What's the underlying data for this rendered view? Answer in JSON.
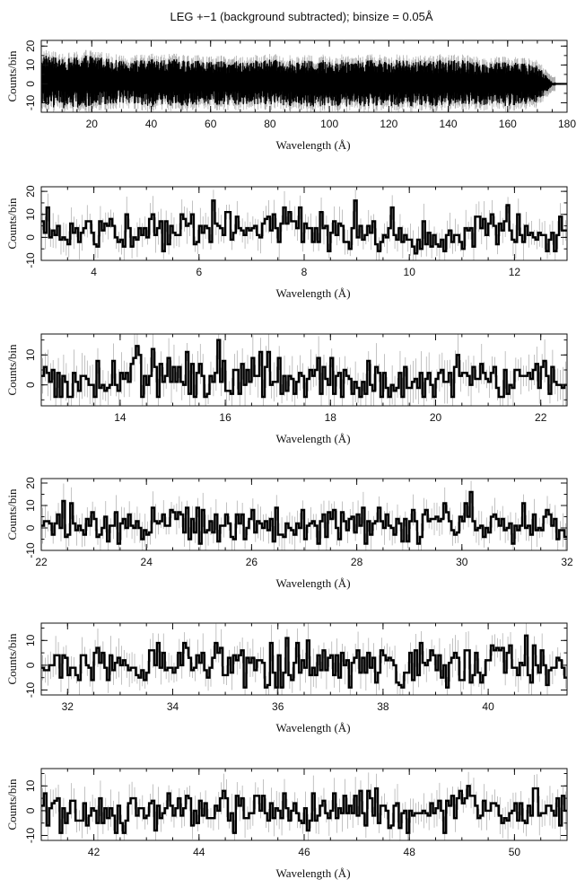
{
  "figure_title": "LEG +−1 (background subtracted); binsize = 0.05Å",
  "chart_data": [
    {
      "type": "line",
      "style": "step histogram with error bars",
      "title": "LEG +−1 (background subtracted); binsize = 0.05Å",
      "xlabel": "Wavelength (Å)",
      "ylabel": "Counts/bin",
      "xlim": [
        3,
        180
      ],
      "ylim": [
        -15,
        23
      ],
      "xticks": [
        20,
        40,
        60,
        80,
        100,
        120,
        140,
        160,
        180
      ],
      "yticks": [
        -10,
        0,
        10,
        20
      ],
      "series": [
        {
          "x": [
            3,
            10,
            20,
            30,
            40,
            50,
            60,
            70,
            80,
            90,
            100,
            110,
            120,
            130,
            140,
            150,
            160,
            170,
            175,
            180
          ],
          "y": [
            4,
            3,
            2,
            2,
            1,
            1,
            2,
            1,
            2,
            1,
            0,
            1,
            1,
            1,
            1,
            0,
            1,
            0,
            0,
            0
          ],
          "y_range": [
            [
              -12,
              16
            ],
            [
              -13,
              13
            ],
            [
              -12,
              16
            ],
            [
              -10,
              12
            ],
            [
              -12,
              13
            ],
            [
              -12,
              13
            ],
            [
              -11,
              12
            ],
            [
              -11,
              12
            ],
            [
              -11,
              13
            ],
            [
              -12,
              12
            ],
            [
              -12,
              13
            ],
            [
              -12,
              13
            ],
            [
              -12,
              13
            ],
            [
              -12,
              12
            ],
            [
              -12,
              13
            ],
            [
              -11,
              12
            ],
            [
              -12,
              12
            ],
            [
              -10,
              10
            ],
            [
              -1,
              1
            ],
            [
              -1,
              1
            ]
          ]
        }
      ]
    },
    {
      "type": "line",
      "style": "step histogram with error bars",
      "xlabel": "Wavelength (Å)",
      "ylabel": "Counts/bin",
      "xlim": [
        3,
        13
      ],
      "ylim": [
        -10,
        22
      ],
      "xticks": [
        4,
        6,
        8,
        10,
        12
      ],
      "yticks": [
        -10,
        0,
        10,
        20
      ],
      "series": [
        {
          "x": [
            3.0,
            3.5,
            4.0,
            4.5,
            5.0,
            5.5,
            6.0,
            6.5,
            7.0,
            7.4,
            7.8,
            8.5,
            9.0,
            9.5,
            10.0,
            10.5,
            11.0,
            11.5,
            12.0,
            12.5,
            13.0
          ],
          "y": [
            4,
            2,
            3,
            2,
            3,
            2,
            5,
            7,
            3,
            9,
            5,
            1,
            2,
            1,
            2,
            1,
            2,
            1,
            3,
            1,
            0
          ]
        }
      ]
    },
    {
      "type": "line",
      "style": "step histogram with error bars",
      "xlabel": "Wavelength (Å)",
      "ylabel": "Counts/bin",
      "xlim": [
        12.5,
        22.5
      ],
      "ylim": [
        -7,
        17
      ],
      "xticks": [
        14,
        16,
        18,
        20,
        22
      ],
      "yticks": [
        0,
        10
      ],
      "series": [
        {
          "x": [
            12.5,
            13.0,
            13.5,
            14.0,
            14.5,
            15.0,
            15.5,
            16.0,
            16.5,
            17.0,
            17.5,
            18.0,
            18.5,
            19.0,
            19.5,
            20.0,
            20.5,
            21.0,
            21.5,
            22.0,
            22.5
          ],
          "y": [
            2,
            1,
            1,
            2,
            4,
            2,
            2,
            3,
            5,
            1,
            1,
            3,
            1,
            2,
            1,
            2,
            3,
            1,
            2,
            3,
            1
          ]
        }
      ]
    },
    {
      "type": "line",
      "style": "step histogram with error bars",
      "xlabel": "Wavelength (Å)",
      "ylabel": "Counts/bin",
      "xlim": [
        22,
        32
      ],
      "ylim": [
        -10,
        22
      ],
      "xticks": [
        22,
        24,
        26,
        28,
        30,
        32
      ],
      "yticks": [
        -10,
        0,
        10,
        20
      ],
      "series": [
        {
          "x": [
            22.0,
            22.5,
            23.0,
            23.5,
            24.0,
            24.5,
            25.0,
            25.5,
            26.0,
            26.5,
            27.0,
            27.5,
            28.0,
            28.5,
            29.0,
            29.5,
            30.0,
            30.5,
            31.0,
            31.5,
            32.0
          ],
          "y": [
            3,
            2,
            2,
            1,
            1,
            5,
            1,
            1,
            2,
            3,
            1,
            2,
            1,
            2,
            1,
            1,
            2,
            1,
            1,
            1,
            0
          ]
        }
      ]
    },
    {
      "type": "line",
      "style": "step histogram with error bars",
      "xlabel": "Wavelength (Å)",
      "ylabel": "Counts/bin",
      "xlim": [
        31.5,
        41.5
      ],
      "ylim": [
        -12,
        17
      ],
      "xticks": [
        32,
        34,
        36,
        38,
        40
      ],
      "yticks": [
        -10,
        0,
        10
      ],
      "series": [
        {
          "x": [
            31.5,
            32.0,
            32.5,
            33.0,
            33.5,
            34.0,
            34.5,
            35.0,
            35.5,
            36.0,
            36.5,
            37.0,
            37.5,
            38.0,
            38.5,
            39.0,
            39.5,
            40.0,
            40.5,
            41.0,
            41.5
          ],
          "y": [
            1,
            0,
            1,
            2,
            1,
            0,
            1,
            1,
            0,
            1,
            1,
            2,
            1,
            0,
            1,
            1,
            0,
            1,
            2,
            0,
            0
          ]
        }
      ]
    },
    {
      "type": "line",
      "style": "step histogram with error bars",
      "xlabel": "Wavelength (Å)",
      "ylabel": "Counts/bin",
      "xlim": [
        41,
        51
      ],
      "ylim": [
        -12,
        17
      ],
      "xticks": [
        42,
        44,
        46,
        48,
        50
      ],
      "yticks": [
        -10,
        0,
        10
      ],
      "series": [
        {
          "x": [
            41.0,
            41.5,
            42.0,
            42.5,
            43.0,
            43.5,
            44.0,
            44.5,
            45.0,
            45.5,
            46.0,
            46.5,
            47.0,
            47.5,
            48.0,
            48.5,
            49.0,
            49.5,
            50.0,
            50.5,
            51.0
          ],
          "y": [
            1,
            1,
            0,
            1,
            1,
            2,
            0,
            1,
            0,
            1,
            0,
            1,
            1,
            2,
            0,
            1,
            2,
            1,
            0,
            1,
            0
          ]
        }
      ]
    }
  ]
}
